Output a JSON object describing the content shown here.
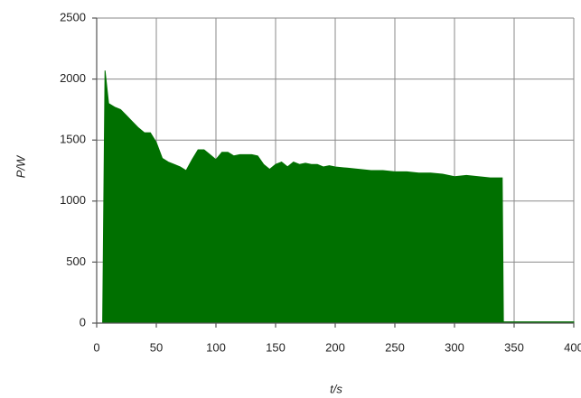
{
  "chart_data": {
    "type": "area",
    "x_label": "t/s",
    "y_label": "P/W",
    "x": [
      5,
      7,
      10,
      15,
      20,
      25,
      30,
      35,
      40,
      45,
      50,
      55,
      60,
      65,
      70,
      75,
      80,
      85,
      90,
      95,
      100,
      105,
      110,
      115,
      120,
      125,
      130,
      135,
      140,
      145,
      150,
      155,
      160,
      165,
      170,
      175,
      180,
      185,
      190,
      195,
      200,
      210,
      220,
      230,
      240,
      250,
      260,
      270,
      280,
      290,
      300,
      310,
      320,
      330,
      340,
      341,
      400
    ],
    "series": [
      {
        "color": "#007000",
        "values": [
          0,
          2070,
          1800,
          1770,
          1750,
          1700,
          1650,
          1600,
          1560,
          1560,
          1480,
          1350,
          1320,
          1300,
          1280,
          1250,
          1340,
          1420,
          1420,
          1380,
          1340,
          1400,
          1400,
          1370,
          1380,
          1380,
          1380,
          1370,
          1300,
          1260,
          1300,
          1320,
          1280,
          1320,
          1300,
          1310,
          1300,
          1300,
          1280,
          1290,
          1280,
          1270,
          1260,
          1250,
          1250,
          1240,
          1240,
          1230,
          1230,
          1220,
          1200,
          1210,
          1200,
          1190,
          1190,
          10,
          10
        ]
      }
    ],
    "xlim": [
      0,
      400
    ],
    "xticks": [
      0,
      50,
      100,
      150,
      200,
      250,
      300,
      350,
      400
    ],
    "ylim": [
      0,
      2500
    ],
    "yticks": [
      0,
      500,
      1000,
      1500,
      2000,
      2500
    ],
    "grid": true
  }
}
